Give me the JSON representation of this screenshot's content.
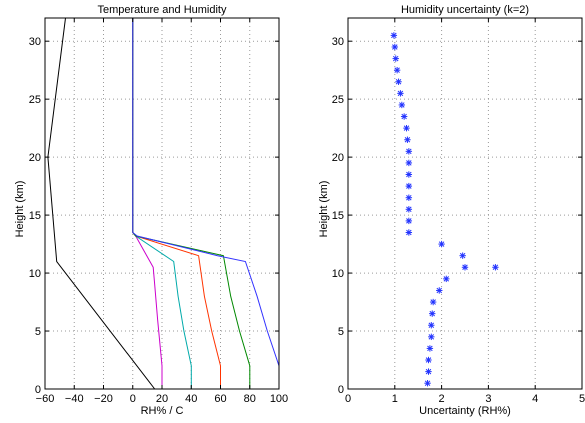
{
  "chart_data": [
    {
      "type": "line",
      "title": "Temperature and Humidity",
      "xlabel": "RH% / C",
      "ylabel": "Height (km)",
      "xlim": [
        -60,
        100
      ],
      "ylim": [
        0,
        32
      ],
      "xticks": [
        "−60",
        "−40",
        "−20",
        "0",
        "20",
        "40",
        "60",
        "80",
        "100"
      ],
      "yticks": [
        "0",
        "5",
        "10",
        "15",
        "20",
        "25",
        "30"
      ],
      "grid": true,
      "series": [
        {
          "color": "#000000",
          "x": [
            15,
            -52,
            -52,
            -58,
            -58,
            -46
          ],
          "y": [
            0,
            11,
            11,
            20,
            20,
            32
          ]
        },
        {
          "color": "#cc00cc",
          "x": [
            20,
            20,
            17,
            15,
            14,
            2,
            0,
            0
          ],
          "y": [
            0,
            2,
            6,
            9,
            10.5,
            13.2,
            13.5,
            32
          ]
        },
        {
          "color": "#00aaaa",
          "x": [
            40,
            40,
            35,
            31,
            28,
            2,
            0,
            0
          ],
          "y": [
            0,
            2,
            5,
            8,
            11,
            13.2,
            13.5,
            32
          ]
        },
        {
          "color": "#ff3300",
          "x": [
            60,
            60,
            54,
            49,
            45,
            2,
            0,
            0
          ],
          "y": [
            0,
            2,
            5,
            8,
            11.5,
            13.2,
            13.5,
            32
          ]
        },
        {
          "color": "#008800",
          "x": [
            80,
            80,
            73,
            67,
            62,
            2,
            0,
            0
          ],
          "y": [
            0,
            2,
            5,
            8,
            11.5,
            13.2,
            13.5,
            32
          ]
        },
        {
          "color": "#3333ff",
          "x": [
            100,
            100,
            92,
            85,
            77,
            58,
            3,
            0,
            0
          ],
          "y": [
            0,
            2,
            5,
            8,
            11,
            11.5,
            13.2,
            13.5,
            32
          ]
        }
      ]
    },
    {
      "type": "scatter",
      "title": "Humidity uncertainty (k=2)",
      "xlabel": "Uncertainty (RH%)",
      "ylabel": "Height (km)",
      "xlim": [
        0,
        5
      ],
      "ylim": [
        0,
        32
      ],
      "xticks": [
        "0",
        "1",
        "2",
        "3",
        "4",
        "5"
      ],
      "yticks": [
        "0",
        "5",
        "10",
        "15",
        "20",
        "25",
        "30"
      ],
      "grid": true,
      "marker": "*",
      "color": "#2233ff",
      "x": [
        1.7,
        1.72,
        1.72,
        1.75,
        1.78,
        1.78,
        1.8,
        1.82,
        1.95,
        2.1,
        2.5,
        3.15,
        2.45,
        2.0,
        1.3,
        1.3,
        1.3,
        1.3,
        1.3,
        1.3,
        1.3,
        1.3,
        1.27,
        1.25,
        1.2,
        1.15,
        1.12,
        1.08,
        1.05,
        1.02,
        1.0,
        0.98
      ],
      "y": [
        0.5,
        1.5,
        2.5,
        3.5,
        4.5,
        5.5,
        6.5,
        7.5,
        8.5,
        9.5,
        10.5,
        10.5,
        11.5,
        12.5,
        13.5,
        14.5,
        15.5,
        16.5,
        17.5,
        18.5,
        19.5,
        20.5,
        21.5,
        22.5,
        23.5,
        24.5,
        25.5,
        26.5,
        27.5,
        28.5,
        29.5,
        30.5
      ]
    }
  ]
}
